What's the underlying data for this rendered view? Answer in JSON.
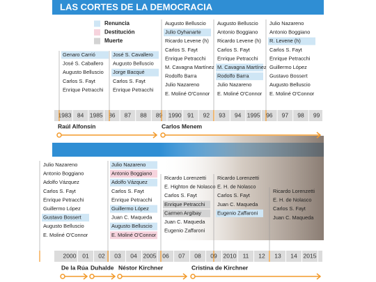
{
  "header": {
    "title": "LAS CORTES DE LA DEMOCRACIA"
  },
  "legend": [
    {
      "label": "Renuncia",
      "color": "#cfe6f5"
    },
    {
      "label": "Destitución",
      "color": "#f6d3dd"
    },
    {
      "label": "Muerte",
      "color": "#d3d3d3"
    }
  ],
  "sections": [
    {
      "columns": [
        [
          {
            "name": "Genaro Carrió",
            "highlight": "#cfe6f5"
          },
          {
            "name": "José S. Caballero"
          },
          {
            "name": "Augusto Belluscio"
          },
          {
            "name": "Carlos S. Fayt"
          },
          {
            "name": "Enrique Petracchi"
          }
        ],
        [
          {
            "name": "José S. Cavallero",
            "highlight": "#cfe6f5"
          },
          {
            "name": "Augusto Belluscio"
          },
          {
            "name": "Jorge Bacqué",
            "highlight": "#cfe6f5"
          },
          {
            "name": "Carlos S. Fayt"
          },
          {
            "name": "Enrique Petracchi"
          }
        ],
        [
          {
            "name": "Augusto Belluscio"
          },
          {
            "name": "Julio Oyhanarte",
            "highlight": "#cfe6f5"
          },
          {
            "name": "Ricardo Levene (h)"
          },
          {
            "name": "Carlos S. Fayt"
          },
          {
            "name": "Enrique Petracchi"
          },
          {
            "name": "M. Cavagna Martínez"
          },
          {
            "name": "Rodolfo Barra"
          },
          {
            "name": "Julio Nazareno"
          },
          {
            "name": "E. Moliné O'Connor"
          }
        ],
        [
          {
            "name": "Augusto Belluscio"
          },
          {
            "name": "Antonio Boggiano"
          },
          {
            "name": "Ricardo Levene (h)"
          },
          {
            "name": "Carlos S. Fayt"
          },
          {
            "name": "Enrique Petracchi"
          },
          {
            "name": "M. Cavagna Martínez",
            "highlight": "#cfe6f5"
          },
          {
            "name": "Rodolfo Barra",
            "highlight": "#cfe6f5"
          },
          {
            "name": "Julio Nazareno"
          },
          {
            "name": "E. Moliné O'Connor"
          }
        ],
        [
          {
            "name": "Julio Nazareno"
          },
          {
            "name": "Antonio Boggiano"
          },
          {
            "name": "R. Levene (h)",
            "highlight": "#cfe6f5"
          },
          {
            "name": "Carlos S. Fayt"
          },
          {
            "name": "Enrique Petracchi"
          },
          {
            "name": "Guillermo López"
          },
          {
            "name": "Gustavo Bossert"
          },
          {
            "name": "Augusto Belluscio"
          },
          {
            "name": "E. Moliné O'Connor"
          }
        ]
      ],
      "years": [
        "1983",
        "84",
        "1985",
        "86",
        "87",
        "88",
        "89",
        "1990",
        "91",
        "92",
        "93",
        "94",
        "1995",
        "96",
        "97",
        "98",
        "99"
      ],
      "presidents": [
        "Raúl Alfonsín",
        "Carlos Menem"
      ]
    },
    {
      "columns": [
        [
          {
            "name": "Julio Nazareno"
          },
          {
            "name": "Antonio Boggiano"
          },
          {
            "name": "Adolfo Vázquez"
          },
          {
            "name": "Carlos S. Fayt"
          },
          {
            "name": "Enrique Petracchi"
          },
          {
            "name": "Guillermo López"
          },
          {
            "name": "Gustavo Bossert",
            "highlight": "#cfe6f5"
          },
          {
            "name": "Augusto Belluscio"
          },
          {
            "name": "E. Moliné O'Connor"
          }
        ],
        [
          {
            "name": "Julio Nazareno",
            "highlight": "#cfe6f5"
          },
          {
            "name": "Antonio Boggiano",
            "highlight": "#f6d3dd"
          },
          {
            "name": "Adolfo Vázquez",
            "highlight": "#cfe6f5"
          },
          {
            "name": "Carlos S. Fayt"
          },
          {
            "name": "Enrique Petracchi"
          },
          {
            "name": "Guillermo López",
            "highlight": "#cfe6f5"
          },
          {
            "name": "Juan C. Maqueda"
          },
          {
            "name": "Augusto Belluscio",
            "highlight": "#cfe6f5"
          },
          {
            "name": "E. Moliné O'Connor",
            "highlight": "#f6d3dd"
          }
        ],
        [
          {
            "name": "Ricardo Lorenzetti"
          },
          {
            "name": "E. Highton de Nolasco"
          },
          {
            "name": "Carlos S. Fayt"
          },
          {
            "name": "Enrique Petracchi",
            "highlight": "#d3d3d3"
          },
          {
            "name": "Carmen Argibay",
            "highlight": "#d3d3d3"
          },
          {
            "name": "Juan C. Maqueda"
          },
          {
            "name": "Eugenio Zaffaroni"
          }
        ],
        [
          {
            "name": "Ricardo Lorenzetti"
          },
          {
            "name": "E. H. de Nolasco"
          },
          {
            "name": "Carlos S. Fayt"
          },
          {
            "name": "Juan C. Maqueda"
          },
          {
            "name": "Eugenio Zaffaroni",
            "highlight": "#cfe6f5"
          }
        ],
        [
          {
            "name": "Ricardo Lorenzetti"
          },
          {
            "name": "E. H. de Nolasco"
          },
          {
            "name": "Carlos S. Fayt"
          },
          {
            "name": "Juan C. Maqueda"
          }
        ]
      ],
      "years": [
        "2000",
        "01",
        "02",
        "03",
        "04",
        "2005",
        "06",
        "07",
        "08",
        "09",
        "2010",
        "11",
        "12",
        "13",
        "14",
        "2015"
      ],
      "presidents": [
        "De la Rúa",
        "Duhalde",
        "Néstor Kirchner",
        "Cristina de Kirchner"
      ]
    }
  ]
}
